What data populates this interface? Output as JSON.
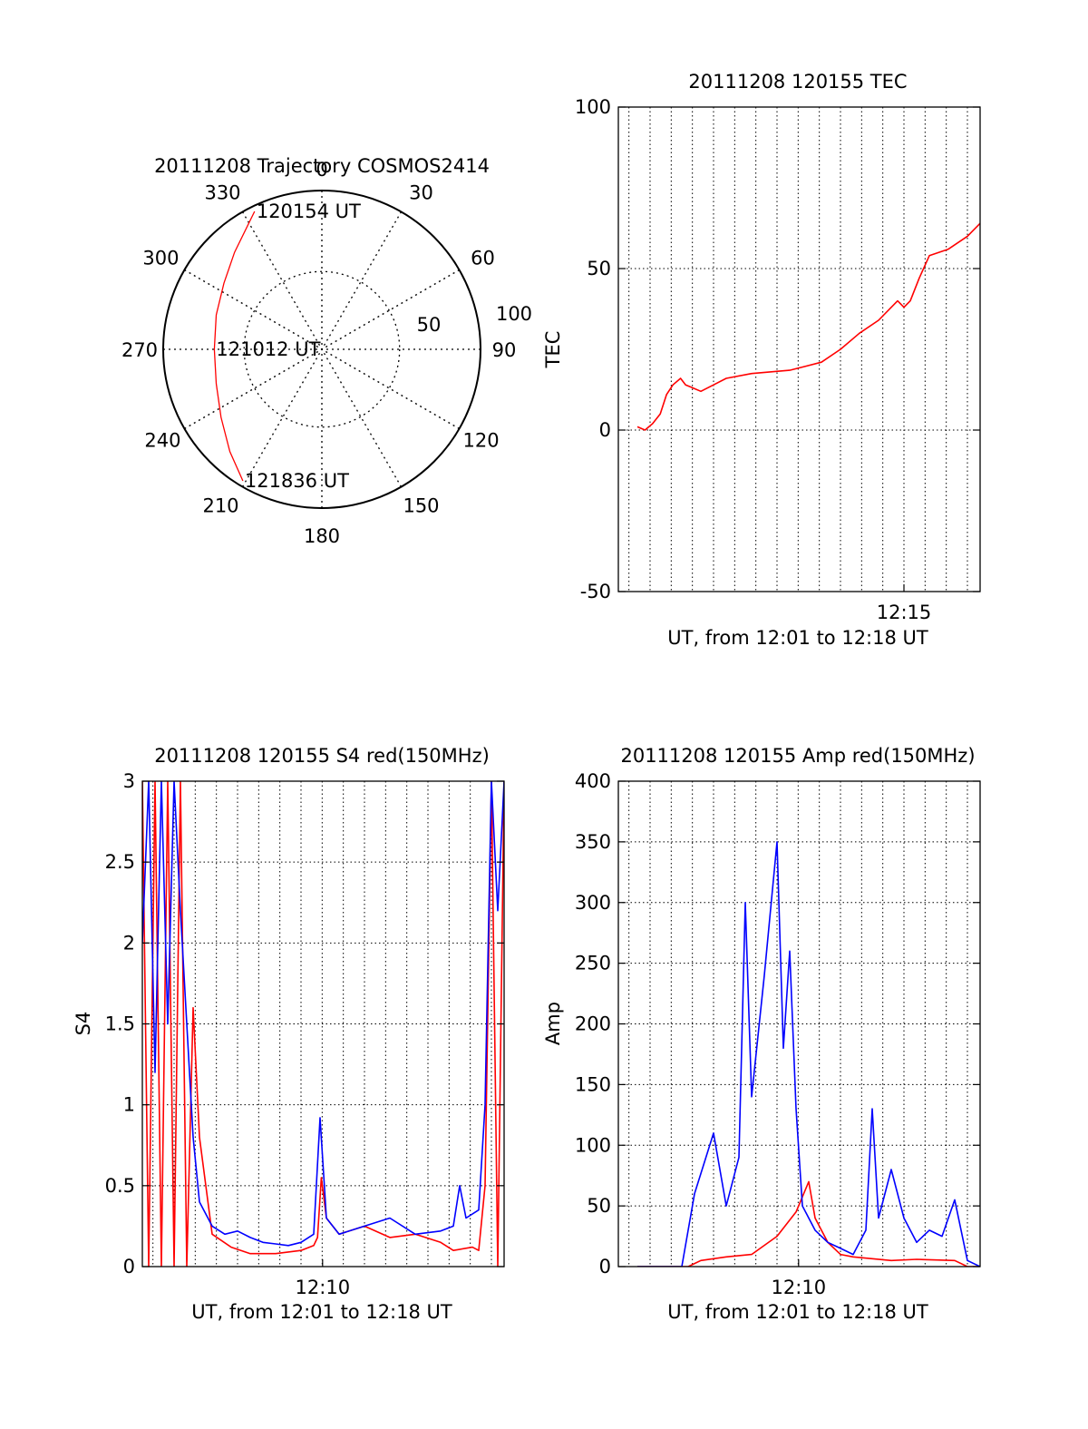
{
  "chart_data": [
    {
      "id": "trajectory",
      "type": "polar",
      "title": "20111208 Trajectory COSMOS2414",
      "azimuth_ticks": [
        "0",
        "30",
        "60",
        "90",
        "120",
        "150",
        "180",
        "210",
        "240",
        "270",
        "300",
        "330"
      ],
      "ring_labels": [
        "50",
        "100"
      ],
      "grid": true,
      "series": [
        {
          "color": "#ff0000",
          "points": [
            {
              "az": 334,
              "zenith": 87
            },
            {
              "az": 318,
              "zenith": 74
            },
            {
              "az": 304,
              "zenith": 67
            },
            {
              "az": 288,
              "zenith": 63
            },
            {
              "az": 270,
              "zenith": 61
            },
            {
              "az": 252,
              "zenith": 63
            },
            {
              "az": 236,
              "zenith": 69
            },
            {
              "az": 222,
              "zenith": 78
            },
            {
              "az": 211,
              "zenith": 87
            }
          ]
        }
      ],
      "annotations": [
        {
          "text": "120154 UT",
          "az": 334,
          "zenith": 87
        },
        {
          "text": "121012 UT",
          "az": 270,
          "zenith": 61
        },
        {
          "text": "121836 UT",
          "az": 211,
          "zenith": 87
        }
      ]
    },
    {
      "id": "tec",
      "type": "line",
      "title": "20111208 120155 TEC",
      "xlabel": "UT, from 12:01 to 12:18 UT",
      "ylabel": "TEC",
      "xlim": [
        12.025,
        12.31
      ],
      "ylim": [
        -50,
        100
      ],
      "yticks": [
        -50,
        0,
        50,
        100
      ],
      "xticks": [
        {
          "value": 12.25,
          "label": "12:15"
        }
      ],
      "grid": true,
      "series": [
        {
          "color": "#ff0000",
          "x": [
            12.04,
            12.046,
            12.052,
            12.058,
            12.063,
            12.068,
            12.074,
            12.078,
            12.084,
            12.09,
            12.1,
            12.11,
            12.13,
            12.16,
            12.185,
            12.2,
            12.215,
            12.23,
            12.245,
            12.25,
            12.255,
            12.262,
            12.27,
            12.285,
            12.3,
            12.31
          ],
          "values": [
            1,
            0,
            2,
            5,
            11,
            14,
            16,
            14,
            13,
            12,
            14,
            16,
            17.5,
            18.5,
            21,
            25,
            30,
            34,
            40,
            38,
            40,
            47,
            54,
            56,
            60,
            64
          ]
        }
      ]
    },
    {
      "id": "s4",
      "type": "line",
      "title": "20111208 120155 S4 red(150MHz)",
      "xlabel": "UT, from 12:01 to 12:18 UT",
      "ylabel": "S4",
      "xlim": [
        12.025,
        12.31
      ],
      "ylim": [
        0,
        3
      ],
      "yticks": [
        0,
        0.5,
        1,
        1.5,
        2,
        2.5,
        3
      ],
      "xticks": [
        {
          "value": 12.167,
          "label": "12:10"
        }
      ],
      "grid": true,
      "series": [
        {
          "color": "#ff0000",
          "x": [
            12.025,
            12.03,
            12.035,
            12.04,
            12.045,
            12.05,
            12.055,
            12.06,
            12.065,
            12.07,
            12.08,
            12.095,
            12.11,
            12.13,
            12.15,
            12.16,
            12.163,
            12.166,
            12.17,
            12.18,
            12.2,
            12.22,
            12.24,
            12.26,
            12.27,
            12.285,
            12.29,
            12.295,
            12.3,
            12.305,
            12.31
          ],
          "values": [
            3,
            0,
            3,
            0,
            3,
            0,
            3,
            0,
            1.6,
            0.8,
            0.2,
            0.12,
            0.08,
            0.08,
            0.1,
            0.13,
            0.18,
            0.55,
            0.3,
            0.2,
            0.25,
            0.18,
            0.2,
            0.15,
            0.1,
            0.12,
            0.1,
            0.5,
            3,
            0,
            3
          ]
        },
        {
          "color": "#0000ff",
          "x": [
            12.025,
            12.03,
            12.035,
            12.04,
            12.045,
            12.05,
            12.055,
            12.06,
            12.065,
            12.07,
            12.08,
            12.09,
            12.1,
            12.11,
            12.12,
            12.13,
            12.14,
            12.15,
            12.16,
            12.165,
            12.17,
            12.18,
            12.2,
            12.22,
            12.24,
            12.26,
            12.27,
            12.275,
            12.28,
            12.29,
            12.295,
            12.3,
            12.305,
            12.31
          ],
          "values": [
            2.0,
            3.0,
            1.2,
            3.0,
            1.5,
            3.0,
            2.2,
            1.5,
            0.8,
            0.4,
            0.25,
            0.2,
            0.22,
            0.18,
            0.15,
            0.14,
            0.13,
            0.15,
            0.2,
            0.92,
            0.3,
            0.2,
            0.25,
            0.3,
            0.2,
            0.22,
            0.25,
            0.5,
            0.3,
            0.35,
            1.0,
            3.0,
            2.2,
            3.0
          ]
        }
      ]
    },
    {
      "id": "amp",
      "type": "line",
      "title": "20111208 120155 Amp red(150MHz)",
      "xlabel": "UT, from 12:01 to 12:18 UT",
      "ylabel": "Amp",
      "xlim": [
        12.025,
        12.31
      ],
      "ylim": [
        0,
        400
      ],
      "yticks": [
        0,
        50,
        100,
        150,
        200,
        250,
        300,
        350,
        400
      ],
      "xticks": [
        {
          "value": 12.167,
          "label": "12:10"
        }
      ],
      "grid": true,
      "series": [
        {
          "color": "#ff0000",
          "x": [
            12.04,
            12.08,
            12.09,
            12.11,
            12.13,
            12.15,
            12.165,
            12.175,
            12.18,
            12.19,
            12.2,
            12.21,
            12.24,
            12.26,
            12.29,
            12.3,
            12.31
          ],
          "values": [
            0,
            0,
            5,
            8,
            10,
            25,
            45,
            70,
            40,
            20,
            10,
            8,
            5,
            6,
            5,
            0,
            0
          ]
        },
        {
          "color": "#0000ff",
          "x": [
            12.04,
            12.075,
            12.085,
            12.1,
            12.11,
            12.12,
            12.125,
            12.13,
            12.14,
            12.15,
            12.155,
            12.16,
            12.165,
            12.17,
            12.175,
            12.18,
            12.19,
            12.2,
            12.21,
            12.22,
            12.225,
            12.23,
            12.24,
            12.25,
            12.26,
            12.27,
            12.28,
            12.29,
            12.3,
            12.31
          ],
          "values": [
            0,
            0,
            60,
            110,
            50,
            90,
            300,
            140,
            240,
            350,
            180,
            260,
            130,
            50,
            40,
            30,
            20,
            15,
            10,
            30,
            130,
            40,
            80,
            40,
            20,
            30,
            25,
            55,
            5,
            0
          ]
        }
      ]
    }
  ]
}
